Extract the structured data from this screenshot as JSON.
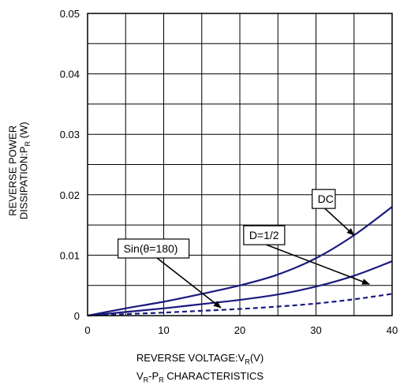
{
  "chart_data": {
    "type": "line",
    "title": "",
    "caption": {
      "main": "V",
      "sub1": "R",
      "mid": "-P",
      "sub2": "R",
      "tail": " CHARACTERISTICS"
    },
    "xlabel": {
      "main": "REVERSE VOLTAGE:V",
      "sub": "R",
      "tail": "(V)"
    },
    "ylabel": {
      "line1": "REVERSE POWER",
      "line2_main": "DISSIPATION:P",
      "line2_sub": "R",
      "line2_tail": " (W)"
    },
    "xlim": [
      0,
      40
    ],
    "ylim": [
      0,
      0.05
    ],
    "x_ticks": [
      0,
      10,
      20,
      30,
      40
    ],
    "x_tick_labels": [
      "0",
      "10",
      "20",
      "30",
      "40"
    ],
    "y_ticks": [
      0,
      0.01,
      0.02,
      0.03,
      0.04,
      0.05
    ],
    "y_tick_labels": [
      "0",
      "0.01",
      "0.02",
      "0.03",
      "0.04",
      "0.05"
    ],
    "grid": true,
    "series": [
      {
        "name": "DC",
        "color": "#1a1a80",
        "dash": false,
        "x": [
          0,
          5,
          10,
          15,
          20,
          25,
          30,
          35,
          40
        ],
        "y": [
          0,
          0.0012,
          0.0023,
          0.0036,
          0.005,
          0.0068,
          0.0095,
          0.0133,
          0.018
        ]
      },
      {
        "name": "D=1/2",
        "color": "#1a1a80",
        "dash": false,
        "x": [
          0,
          5,
          10,
          15,
          20,
          25,
          30,
          35,
          40
        ],
        "y": [
          0,
          0.0006,
          0.0012,
          0.0019,
          0.0026,
          0.0035,
          0.0048,
          0.0066,
          0.009
        ]
      },
      {
        "name": "Sin(θ=180)",
        "color": "#1a1a80",
        "dash": true,
        "x": [
          0,
          5,
          10,
          15,
          20,
          25,
          30,
          35,
          40
        ],
        "y": [
          0,
          0.00025,
          0.0005,
          0.0008,
          0.0011,
          0.0015,
          0.002,
          0.0027,
          0.0036
        ]
      }
    ],
    "annotations": [
      {
        "text": "DC",
        "box_x": 29.5,
        "box_y": 0.0193,
        "arrow_x": 35.0,
        "arrow_y": 0.0133
      },
      {
        "text": "D=1/2",
        "box_x": 20.5,
        "box_y": 0.0133,
        "arrow_x": 37.0,
        "arrow_y": 0.0052
      },
      {
        "text": "Sin(θ=180)",
        "box_x": 4.0,
        "box_y": 0.0111,
        "arrow_x": 17.5,
        "arrow_y": 0.0013
      }
    ]
  }
}
